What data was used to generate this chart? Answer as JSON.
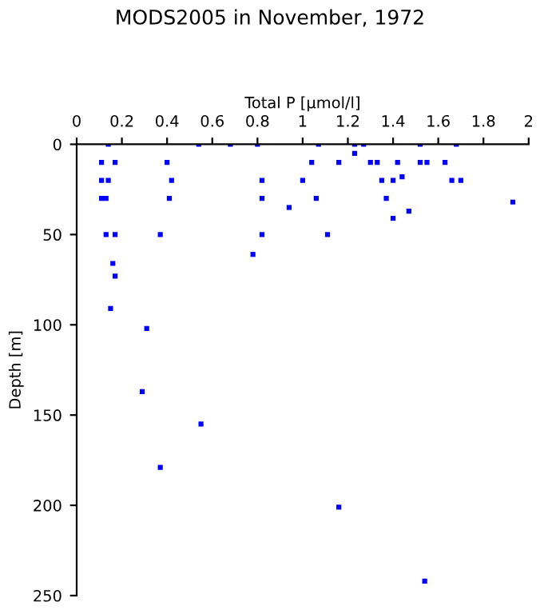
{
  "chart_data": {
    "type": "scatter",
    "title": "MODS2005 in November, 1972",
    "xlabel": "Total P [µmol/l]",
    "ylabel": "Depth [m]",
    "x": [
      0.14,
      0.54,
      0.68,
      0.8,
      1.07,
      1.23,
      1.23,
      1.27,
      1.52,
      1.68,
      0.11,
      0.17,
      0.4,
      1.04,
      1.16,
      1.3,
      1.33,
      1.42,
      1.52,
      1.55,
      1.63,
      0.11,
      0.14,
      0.42,
      0.82,
      1.0,
      1.35,
      1.4,
      1.44,
      1.66,
      1.7,
      0.11,
      0.13,
      0.41,
      0.82,
      1.06,
      1.37,
      1.93,
      0.94,
      1.4,
      1.47,
      0.13,
      0.17,
      0.37,
      0.82,
      1.11,
      0.78,
      0.16,
      0.17,
      0.15,
      0.31,
      0.29,
      0.55,
      0.37,
      1.16,
      1.54
    ],
    "series": [
      {
        "color": "#0000ff",
        "values": [
          0,
          0,
          0,
          0,
          0,
          0,
          5,
          0,
          0,
          0,
          10,
          10,
          10,
          10,
          10,
          10,
          10,
          10,
          10,
          10,
          10,
          20,
          20,
          20,
          20,
          20,
          20,
          20,
          18,
          20,
          20,
          30,
          30,
          30,
          30,
          30,
          30,
          32,
          35,
          41,
          37,
          50,
          50,
          50,
          50,
          50,
          61,
          66,
          73,
          91,
          102,
          137,
          155,
          179,
          201,
          242
        ]
      }
    ],
    "marker": "square",
    "grid": false,
    "xlim": [
      0,
      2
    ],
    "xticks": [
      0,
      0.2,
      0.4,
      0.6,
      0.8,
      1,
      1.2,
      1.4,
      1.6,
      1.8,
      2
    ],
    "ylim": [
      250,
      0
    ],
    "yticks": [
      0,
      50,
      100,
      150,
      200,
      250
    ]
  }
}
